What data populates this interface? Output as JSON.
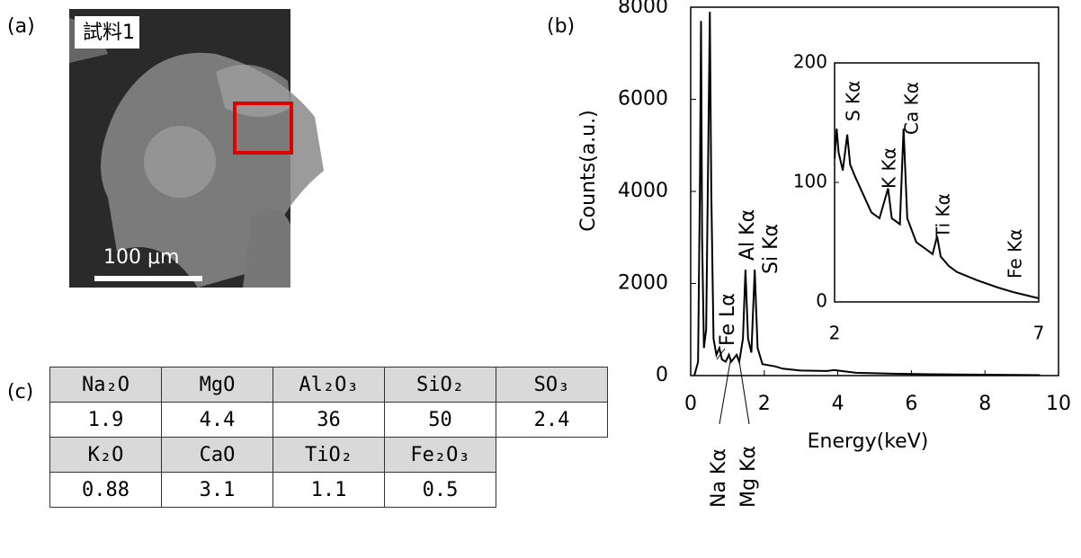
{
  "panel_labels": [
    "(a)",
    "(b)",
    "(c)"
  ],
  "image": {
    "label": "試料1",
    "scale_bar": "100 μm"
  },
  "chart_data": [
    {
      "type": "line",
      "x_label": "Energy(keV)",
      "y_label": "Counts(a.u.)",
      "xlim": [
        0,
        10
      ],
      "ylim": [
        0,
        8000
      ],
      "xticks": [
        0,
        2,
        4,
        6,
        8,
        10
      ],
      "yticks": [
        0,
        2000,
        4000,
        6000,
        8000
      ],
      "color": "#000000",
      "annotations": [
        "Na Kα",
        "Mg Kα",
        "Fe Lα",
        "Al Kα",
        "Si Kα"
      ],
      "x": [
        0.1,
        0.2,
        0.25,
        0.28,
        0.31,
        0.36,
        0.42,
        0.48,
        0.52,
        0.56,
        0.62,
        0.7,
        0.78,
        0.85,
        0.95,
        1.04,
        1.1,
        1.25,
        1.32,
        1.42,
        1.49,
        1.56,
        1.65,
        1.74,
        1.82,
        1.95,
        2.3,
        2.5,
        3.0,
        3.7,
        3.9,
        4.5,
        5.5,
        6.5,
        8.0,
        9.5
      ],
      "y": [
        0,
        300,
        4000,
        7700,
        3000,
        600,
        1000,
        5000,
        7900,
        4000,
        800,
        450,
        600,
        350,
        300,
        450,
        300,
        450,
        300,
        800,
        2300,
        800,
        500,
        2300,
        600,
        250,
        200,
        150,
        110,
        100,
        120,
        60,
        40,
        30,
        20,
        10
      ]
    },
    {
      "type": "line",
      "xlim": [
        2,
        7
      ],
      "ylim": [
        0,
        200
      ],
      "xticks": [
        2,
        7
      ],
      "yticks": [
        0,
        100,
        200
      ],
      "color": "#000000",
      "annotations": [
        "S Kα",
        "K Kα",
        "Ca Kα",
        "Ti Kα",
        "Fe Kα"
      ],
      "x": [
        2.0,
        2.05,
        2.1,
        2.2,
        2.31,
        2.38,
        2.5,
        2.7,
        2.9,
        3.1,
        3.31,
        3.4,
        3.6,
        3.69,
        3.78,
        4.0,
        4.2,
        4.4,
        4.51,
        4.6,
        4.8,
        5.0,
        5.5,
        6.0,
        6.4,
        7.0
      ],
      "y": [
        120,
        145,
        125,
        110,
        140,
        115,
        105,
        90,
        75,
        70,
        95,
        70,
        65,
        145,
        70,
        50,
        45,
        40,
        55,
        38,
        30,
        25,
        18,
        12,
        8,
        3
      ]
    }
  ],
  "table": {
    "rows": [
      [
        "Na₂O",
        "MgO",
        "Al₂O₃",
        "SiO₂",
        "SO₃"
      ],
      [
        1.9,
        4.4,
        36,
        50,
        2.4
      ],
      [
        "K₂O",
        "CaO",
        "TiO₂",
        "Fe₂O₃"
      ],
      [
        0.88,
        3.1,
        1.1,
        0.5
      ]
    ]
  }
}
